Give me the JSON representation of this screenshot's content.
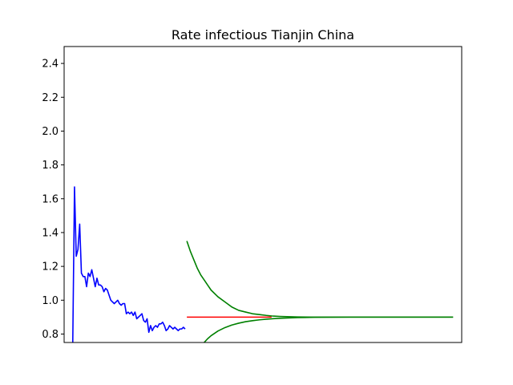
{
  "chart_data": {
    "type": "line",
    "title": "Rate infectious Tianjin China",
    "xlabel": "",
    "ylabel": "",
    "ylim": [
      0.75,
      2.5
    ],
    "xlim": [
      -5,
      225
    ],
    "x_ticks_visible": false,
    "grid": false,
    "y_ticks": [
      0.8,
      1.0,
      1.2,
      1.4,
      1.6,
      1.8,
      2.0,
      2.2,
      2.4
    ],
    "y_tick_labels": [
      "0.8",
      "1.0",
      "1.2",
      "1.4",
      "1.6",
      "1.8",
      "2.0",
      "2.2",
      "2.4"
    ],
    "series": [
      {
        "color": "#0000ff",
        "x": [
          0,
          1,
          2,
          3,
          4,
          5,
          6,
          7,
          8,
          9,
          10,
          11,
          12,
          13,
          14,
          15,
          16,
          17,
          18,
          19,
          20,
          21,
          22,
          23,
          24,
          25,
          26,
          27,
          28,
          29,
          30,
          31,
          32,
          33,
          34,
          35,
          36,
          37,
          38,
          39,
          40,
          41,
          42,
          43,
          44,
          45,
          46,
          47,
          48,
          49,
          50,
          51,
          52,
          53,
          54,
          55,
          56,
          57,
          58,
          59,
          60,
          61,
          62,
          63,
          64,
          65
        ],
        "values": [
          0.75,
          1.67,
          1.26,
          1.3,
          1.45,
          1.16,
          1.14,
          1.14,
          1.08,
          1.16,
          1.14,
          1.18,
          1.13,
          1.08,
          1.13,
          1.09,
          1.09,
          1.08,
          1.05,
          1.07,
          1.06,
          1.03,
          1.0,
          0.99,
          0.98,
          0.99,
          1.0,
          0.98,
          0.97,
          0.98,
          0.98,
          0.92,
          0.93,
          0.92,
          0.93,
          0.91,
          0.93,
          0.89,
          0.9,
          0.91,
          0.92,
          0.88,
          0.87,
          0.89,
          0.81,
          0.85,
          0.82,
          0.84,
          0.85,
          0.84,
          0.86,
          0.86,
          0.87,
          0.85,
          0.82,
          0.83,
          0.85,
          0.84,
          0.83,
          0.84,
          0.83,
          0.82,
          0.83,
          0.83,
          0.84,
          0.83
        ]
      },
      {
        "color": "#ff0000",
        "x": [
          66,
          115
        ],
        "values": [
          0.9,
          0.9
        ]
      },
      {
        "color": "#008000",
        "x": [
          66,
          68,
          70,
          72,
          74,
          76,
          78,
          80,
          84,
          88,
          92,
          96,
          100,
          104,
          108,
          112,
          116,
          120,
          130,
          140,
          160,
          180,
          200,
          220
        ],
        "values": [
          1.35,
          1.29,
          1.24,
          1.19,
          1.15,
          1.12,
          1.09,
          1.06,
          1.02,
          0.99,
          0.96,
          0.94,
          0.93,
          0.92,
          0.915,
          0.91,
          0.906,
          0.904,
          0.901,
          0.9,
          0.9,
          0.9,
          0.9,
          0.9
        ]
      },
      {
        "color": "#008000",
        "x": [
          76,
          78,
          80,
          84,
          88,
          92,
          96,
          100,
          104,
          108,
          112,
          116,
          120,
          130,
          140,
          160,
          180,
          200,
          220
        ],
        "values": [
          0.75,
          0.772,
          0.79,
          0.818,
          0.838,
          0.853,
          0.864,
          0.873,
          0.879,
          0.884,
          0.888,
          0.891,
          0.893,
          0.897,
          0.899,
          0.9,
          0.9,
          0.9,
          0.9
        ]
      }
    ]
  }
}
